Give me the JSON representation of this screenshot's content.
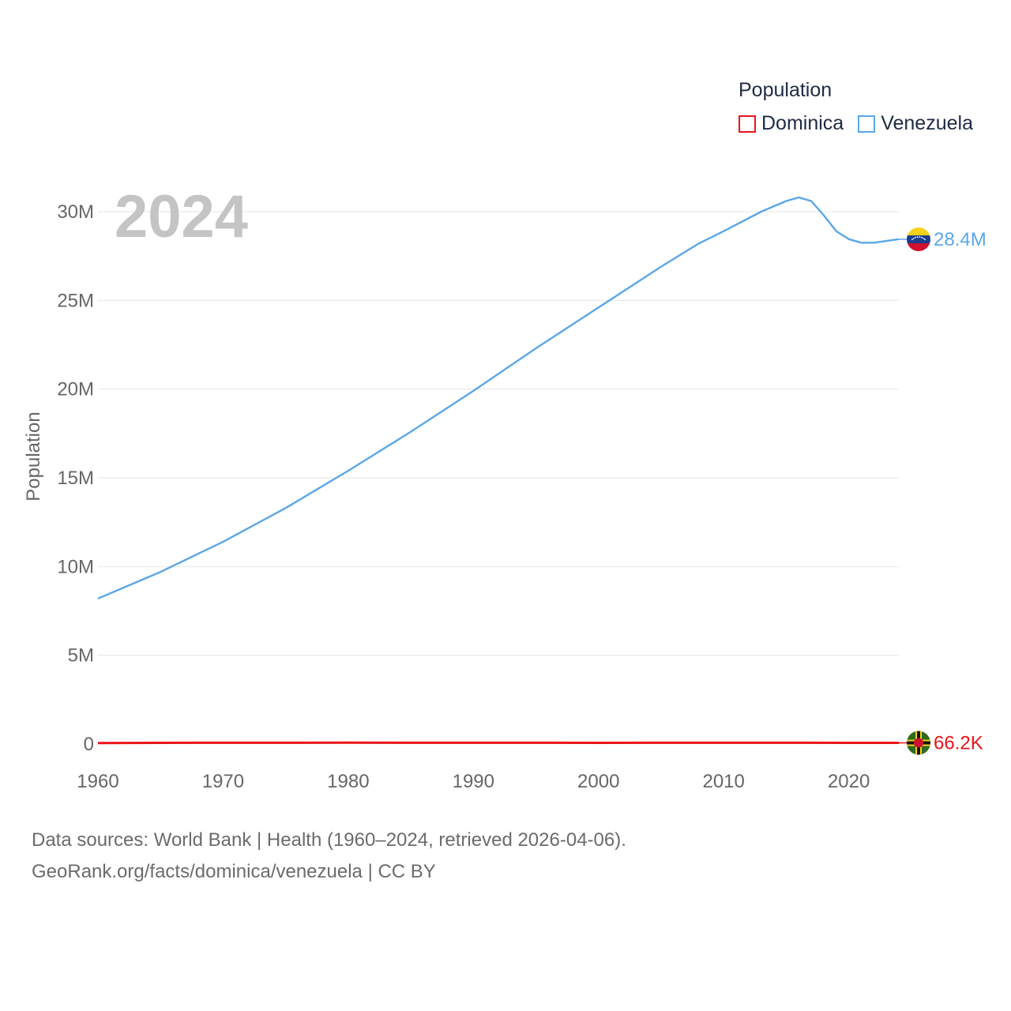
{
  "legend": {
    "title": "Population",
    "items": [
      {
        "name": "Dominica",
        "color": "#e8151a"
      },
      {
        "name": "Venezuela",
        "color": "#5ba7e6"
      }
    ]
  },
  "footer": {
    "line1": "Data sources: World Bank | Health (1960–2024, retrieved 2026-04-06).",
    "line2": "GeoRank.org/facts/dominica/venezuela | CC BY"
  },
  "chart_data": {
    "type": "line",
    "title": "",
    "year_label": "2024",
    "xlabel": "",
    "ylabel": "Population",
    "xlim": [
      1960,
      2024
    ],
    "ylim": [
      0,
      30000000
    ],
    "x_ticks": [
      1960,
      1970,
      1980,
      1990,
      2000,
      2010,
      2020
    ],
    "y_ticks": [
      {
        "value": 0,
        "label": "0"
      },
      {
        "value": 5000000,
        "label": "5M"
      },
      {
        "value": 10000000,
        "label": "10M"
      },
      {
        "value": 15000000,
        "label": "15M"
      },
      {
        "value": 20000000,
        "label": "20M"
      },
      {
        "value": 25000000,
        "label": "25M"
      },
      {
        "value": 30000000,
        "label": "30M"
      }
    ],
    "grid": true,
    "series": [
      {
        "name": "Venezuela",
        "color": "#5ba7e6",
        "end_label": "28.4M",
        "x": [
          1960,
          1965,
          1970,
          1975,
          1980,
          1985,
          1990,
          1995,
          2000,
          2005,
          2008,
          2010,
          2013,
          2015,
          2016,
          2017,
          2018,
          2019,
          2020,
          2021,
          2022,
          2023,
          2024
        ],
        "values": [
          8200000,
          9700000,
          11400000,
          13300000,
          15400000,
          17600000,
          19900000,
          22300000,
          24600000,
          26900000,
          28200000,
          28900000,
          30000000,
          30600000,
          30800000,
          30600000,
          29800000,
          28900000,
          28450000,
          28250000,
          28250000,
          28350000,
          28450000
        ]
      },
      {
        "name": "Dominica",
        "color": "#e8151a",
        "end_label": "66.2K",
        "x": [
          1960,
          1965,
          1970,
          1975,
          1980,
          1985,
          1990,
          1995,
          2000,
          2005,
          2010,
          2015,
          2020,
          2024
        ],
        "values": [
          60000,
          65000,
          70000,
          72000,
          74000,
          72000,
          70000,
          69000,
          68000,
          69000,
          70000,
          70000,
          67500,
          66200
        ]
      }
    ]
  }
}
